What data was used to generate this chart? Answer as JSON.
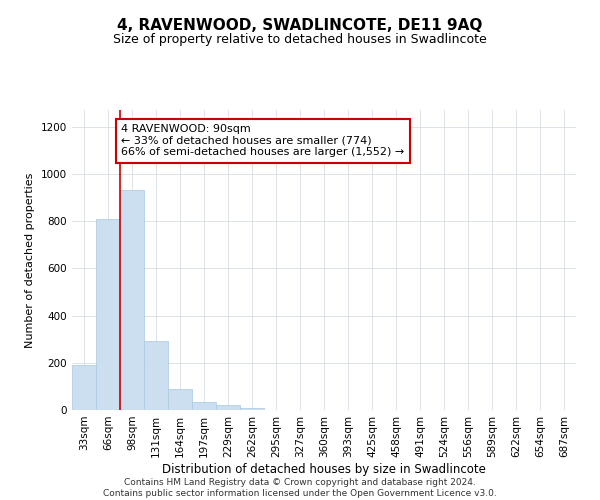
{
  "title": "4, RAVENWOOD, SWADLINCOTE, DE11 9AQ",
  "subtitle": "Size of property relative to detached houses in Swadlincote",
  "xlabel": "Distribution of detached houses by size in Swadlincote",
  "ylabel": "Number of detached properties",
  "categories": [
    "33sqm",
    "66sqm",
    "98sqm",
    "131sqm",
    "164sqm",
    "197sqm",
    "229sqm",
    "262sqm",
    "295sqm",
    "327sqm",
    "360sqm",
    "393sqm",
    "425sqm",
    "458sqm",
    "491sqm",
    "524sqm",
    "556sqm",
    "589sqm",
    "622sqm",
    "654sqm",
    "687sqm"
  ],
  "values": [
    190,
    810,
    930,
    290,
    90,
    35,
    20,
    10,
    0,
    0,
    0,
    0,
    0,
    0,
    0,
    0,
    0,
    0,
    0,
    0,
    0
  ],
  "bar_color": "#ccdff0",
  "bar_edge_color": "#aac8e0",
  "property_line_x": 1.5,
  "annotation_line1": "4 RAVENWOOD: 90sqm",
  "annotation_line2": "← 33% of detached houses are smaller (774)",
  "annotation_line3": "66% of semi-detached houses are larger (1,552) →",
  "annotation_box_color": "#ffffff",
  "annotation_box_edge_color": "#cc0000",
  "property_line_color": "#cc0000",
  "ylim": [
    0,
    1270
  ],
  "yticks": [
    0,
    200,
    400,
    600,
    800,
    1000,
    1200
  ],
  "footer_line1": "Contains HM Land Registry data © Crown copyright and database right 2024.",
  "footer_line2": "Contains public sector information licensed under the Open Government Licence v3.0.",
  "background_color": "#ffffff",
  "grid_color": "#d0d8e0",
  "title_fontsize": 11,
  "subtitle_fontsize": 9,
  "xlabel_fontsize": 8.5,
  "ylabel_fontsize": 8,
  "tick_fontsize": 7.5,
  "annotation_fontsize": 8,
  "footer_fontsize": 6.5
}
